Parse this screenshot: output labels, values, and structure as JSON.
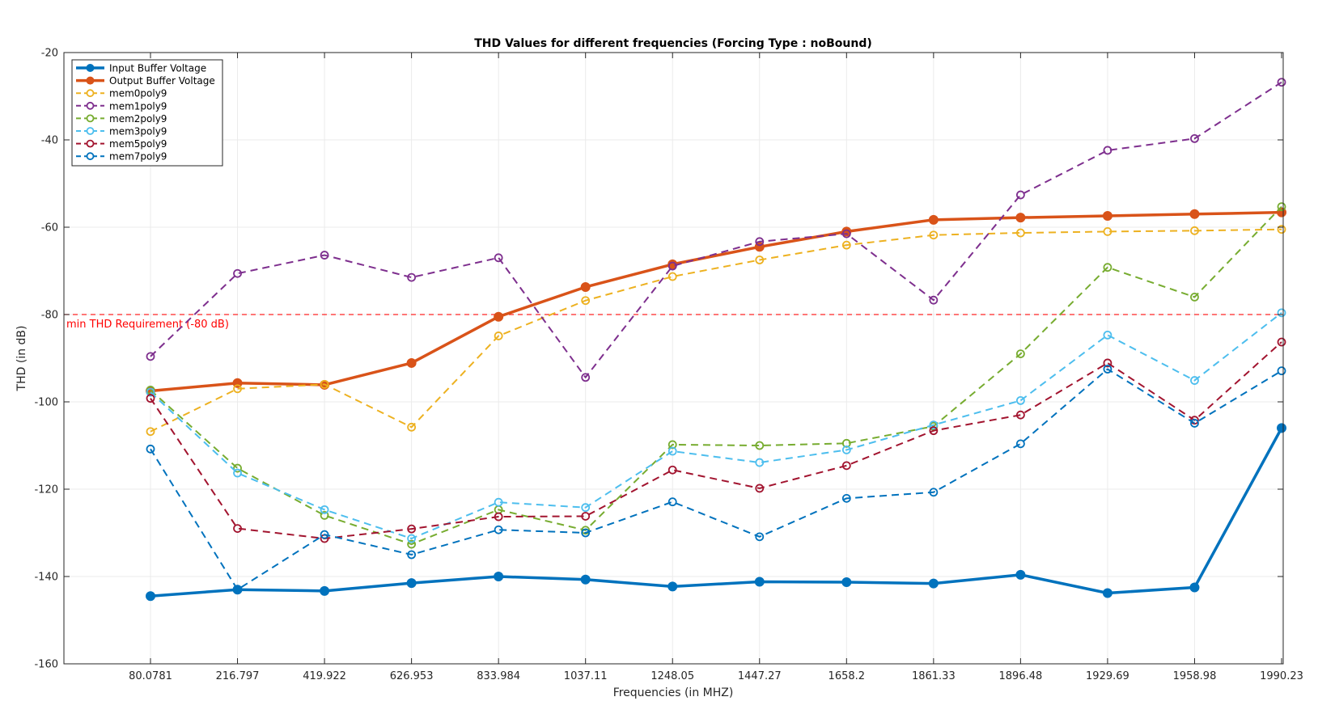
{
  "chart_data": {
    "type": "line",
    "title": "THD Values for different frequencies (Forcing Type : noBound)",
    "xlabel": "Frequencies (in MHZ)",
    "ylabel": "THD (in dB)",
    "categories": [
      "80.0781",
      "216.797",
      "419.922",
      "626.953",
      "833.984",
      "1037.11",
      "1248.05",
      "1447.27",
      "1658.2",
      "1861.33",
      "1896.48",
      "1929.69",
      "1958.98",
      "1990.23"
    ],
    "ylim": [
      -160,
      -20
    ],
    "yticks": [
      -160,
      -140,
      -120,
      -100,
      -80,
      -60,
      -40,
      -20
    ],
    "grid": true,
    "legend_position": "top-left",
    "series": [
      {
        "name": "Input Buffer Voltage",
        "color": "#0072BD",
        "style": "solid",
        "values": [
          -144.5,
          -143,
          -143.3,
          -141.5,
          -140,
          -140.7,
          -142.3,
          -141.2,
          -141.3,
          -141.6,
          -139.6,
          -143.8,
          -142.5,
          -106
        ]
      },
      {
        "name": "Output Buffer Voltage",
        "color": "#D95319",
        "style": "solid",
        "values": [
          -97.5,
          -95.7,
          -96.1,
          -91.1,
          -80.5,
          -73.7,
          -68.5,
          -64.5,
          -61,
          -58.3,
          -57.8,
          -57.4,
          -57,
          -56.6
        ]
      },
      {
        "name": "mem0poly9",
        "color": "#EDB120",
        "style": "dashed",
        "values": [
          -106.8,
          -97,
          -96,
          -105.8,
          -84.9,
          -76.8,
          -71.3,
          -67.5,
          -64.1,
          -61.8,
          -61.3,
          -61,
          -60.8,
          -60.5
        ]
      },
      {
        "name": "mem1poly9",
        "color": "#7E2F8E",
        "style": "dashed",
        "values": [
          -89.6,
          -70.6,
          -66.4,
          -71.5,
          -67,
          -94.4,
          -68.9,
          -63.3,
          -61.5,
          -76.7,
          -52.6,
          -42.4,
          -39.7,
          -26.8
        ]
      },
      {
        "name": "mem2poly9",
        "color": "#77AC30",
        "style": "dashed",
        "values": [
          -97.3,
          -115.2,
          -126,
          -132.6,
          -124.7,
          -129.4,
          -109.8,
          -110,
          -109.5,
          -105.6,
          -89,
          -69.2,
          -76,
          -55.3
        ]
      },
      {
        "name": "mem3poly9",
        "color": "#4DBEEE",
        "style": "dashed",
        "values": [
          -97.8,
          -116.3,
          -124.7,
          -131.3,
          -123,
          -124.2,
          -111.3,
          -113.9,
          -111,
          -105.3,
          -99.7,
          -84.7,
          -95.1,
          -79.6
        ]
      },
      {
        "name": "mem5poly9",
        "color": "#A2142F",
        "style": "dashed",
        "values": [
          -99.2,
          -129,
          -131.3,
          -129.1,
          -126.3,
          -126.2,
          -115.6,
          -119.8,
          -114.6,
          -106.6,
          -103,
          -91.1,
          -104.2,
          -86.3
        ]
      },
      {
        "name": "mem7poly9",
        "color": "#0072BD",
        "style": "dashed",
        "values": [
          -110.8,
          -143,
          -130.4,
          -135,
          -129.3,
          -130,
          -122.9,
          -130.9,
          -122.1,
          -120.7,
          -109.6,
          -92.5,
          -104.9,
          -92.9
        ]
      }
    ],
    "reference_line": {
      "value": -80,
      "label": "min THD Requirement (-80 dB)",
      "color": "#FF0000"
    }
  }
}
